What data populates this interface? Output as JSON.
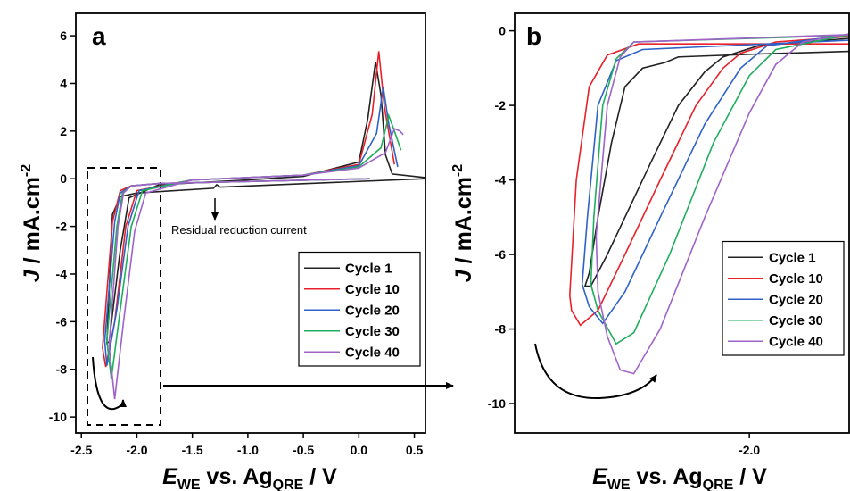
{
  "chart_data": [
    {
      "type": "line",
      "panel_label": "a",
      "ylabel": [
        "J",
        " / mA.cm",
        "-2"
      ],
      "xlabel": [
        "E",
        "WE",
        " vs. Ag",
        "QRE",
        " / V"
      ],
      "annotation": "Residual reduction current",
      "xlim": [
        -2.55,
        0.6
      ],
      "ylim": [
        -10.67,
        6.94
      ],
      "xticks": [
        -2.5,
        {
          "value": -2,
          "label": "-2.0"
        },
        -1.5,
        {
          "value": -1,
          "label": "-1.0"
        },
        -0.5,
        {
          "value": 0,
          "label": "0.0"
        },
        0.5
      ],
      "yticks": [
        -10,
        -8,
        -6,
        -4,
        -2,
        0,
        2,
        4,
        6
      ],
      "legend": "lower right",
      "series": [
        {
          "name": "Cycle 1",
          "color": "#222222",
          "x": [
            0.6,
            -1.25,
            -1.28,
            -1.31,
            -2.0,
            -2.15,
            -2.22,
            -2.27,
            -2.25,
            -2.15,
            -2.07,
            -1.8,
            -1.0,
            -0.5,
            0.0,
            0.08,
            0.15,
            0.2,
            0.24,
            0.3,
            0.6
          ],
          "values": [
            0.0,
            -0.35,
            -0.25,
            -0.4,
            -0.6,
            -0.75,
            -1.5,
            -6.9,
            -6.85,
            -3.0,
            -0.8,
            -0.25,
            -0.05,
            0.1,
            0.7,
            2.5,
            4.9,
            3.5,
            1.0,
            0.2,
            0.05
          ]
        },
        {
          "name": "Cycle 10",
          "color": "#e8212b",
          "x": [
            0.1,
            -1.8,
            -2.05,
            -2.15,
            -2.22,
            -2.31,
            -2.28,
            -2.2,
            -2.1,
            -2.0,
            -1.5,
            -0.5,
            0.0,
            0.12,
            0.18,
            0.23,
            0.32
          ],
          "values": [
            0.0,
            -0.2,
            -0.3,
            -0.5,
            -1.8,
            -7.1,
            -7.9,
            -6.0,
            -2.0,
            -0.5,
            -0.05,
            0.15,
            0.6,
            2.7,
            5.35,
            3.0,
            0.6
          ]
        },
        {
          "name": "Cycle 20",
          "color": "#2f62c8",
          "x": [
            0.1,
            -1.8,
            -2.05,
            -2.15,
            -2.2,
            -2.29,
            -2.27,
            -2.18,
            -2.08,
            -1.98,
            -1.5,
            -0.5,
            0.0,
            0.16,
            0.22,
            0.27,
            0.35
          ],
          "values": [
            0.0,
            -0.2,
            -0.3,
            -0.6,
            -1.8,
            -6.8,
            -7.85,
            -5.5,
            -2.0,
            -0.5,
            -0.05,
            0.15,
            0.55,
            1.9,
            3.85,
            2.3,
            0.5
          ]
        },
        {
          "name": "Cycle 30",
          "color": "#1fae5c",
          "x": [
            0.1,
            -1.8,
            -2.05,
            -2.13,
            -2.18,
            -2.27,
            -2.23,
            -2.15,
            -2.05,
            -1.95,
            -1.5,
            -0.5,
            0.0,
            0.2,
            0.27,
            0.32,
            0.38
          ],
          "values": [
            0.0,
            -0.2,
            -0.3,
            -0.6,
            -2.0,
            -6.8,
            -8.4,
            -5.5,
            -2.0,
            -0.5,
            -0.05,
            0.15,
            0.5,
            1.3,
            2.65,
            2.0,
            1.2
          ]
        },
        {
          "name": "Cycle 40",
          "color": "#a063c9",
          "x": [
            0.1,
            -1.8,
            -2.05,
            -2.12,
            -2.17,
            -2.25,
            -2.2,
            -2.12,
            -2.02,
            -1.92,
            -1.5,
            -0.5,
            0.0,
            0.24,
            0.32,
            0.37,
            0.4
          ],
          "values": [
            0.0,
            -0.2,
            -0.3,
            -0.6,
            -2.0,
            -7.0,
            -9.25,
            -6.0,
            -2.2,
            -0.6,
            -0.05,
            0.15,
            0.45,
            1.1,
            2.1,
            2.0,
            1.85
          ]
        }
      ]
    },
    {
      "type": "line",
      "panel_label": "b",
      "ylabel": [
        "J",
        " / mA.cm",
        "-2"
      ],
      "xlabel": [
        "E",
        "WE",
        " vs. Ag",
        "QRE",
        " / V"
      ],
      "xlim": [
        -2.4,
        -1.83
      ],
      "ylim": [
        -10.79,
        0.47
      ],
      "xticks": [
        {
          "value": -2,
          "label": "-2.0"
        }
      ],
      "yticks": [
        -10,
        -8,
        -6,
        -4,
        -2,
        0
      ],
      "legend": "lower right",
      "series": [
        {
          "name": "Cycle 1",
          "color": "#222222",
          "x": [
            -1.83,
            -1.985,
            -2.121,
            -2.144,
            -2.182,
            -2.212,
            -2.235,
            -2.258,
            -2.273,
            -2.28,
            -2.27,
            -2.242,
            -2.212,
            -2.167,
            -2.121,
            -2.076,
            -2.045,
            -1.985,
            -1.83
          ],
          "values": [
            -0.55,
            -0.62,
            -0.7,
            -0.85,
            -1.0,
            -1.5,
            -3.0,
            -5.0,
            -6.5,
            -6.85,
            -6.85,
            -6.0,
            -5.0,
            -3.5,
            -2.0,
            -1.1,
            -0.7,
            -0.4,
            -0.2
          ]
        },
        {
          "name": "Cycle 10",
          "color": "#e8212b",
          "x": [
            -1.83,
            -2.189,
            -2.242,
            -2.273,
            -2.295,
            -2.306,
            -2.303,
            -2.288,
            -2.258,
            -2.212,
            -2.152,
            -2.091,
            -2.045,
            -2.015,
            -1.955,
            -1.83
          ],
          "values": [
            -0.35,
            -0.35,
            -0.65,
            -1.5,
            -4.0,
            -7.1,
            -7.5,
            -7.9,
            -7.5,
            -6.0,
            -4.0,
            -2.0,
            -1.0,
            -0.6,
            -0.3,
            -0.15
          ]
        },
        {
          "name": "Cycle 20",
          "color": "#2f62c8",
          "x": [
            -1.83,
            -2.182,
            -2.227,
            -2.258,
            -2.276,
            -2.285,
            -2.273,
            -2.25,
            -2.212,
            -2.152,
            -2.076,
            -2.015,
            -1.97,
            -1.83
          ],
          "values": [
            -0.25,
            -0.5,
            -0.8,
            -2.0,
            -5.0,
            -6.8,
            -7.4,
            -7.85,
            -7.0,
            -5.0,
            -2.5,
            -1.0,
            -0.4,
            -0.1
          ]
        },
        {
          "name": "Cycle 30",
          "color": "#1fae5c",
          "x": [
            -1.83,
            -2.197,
            -2.227,
            -2.25,
            -2.265,
            -2.27,
            -2.258,
            -2.227,
            -2.197,
            -2.136,
            -2.061,
            -2.0,
            -1.955,
            -1.83
          ],
          "values": [
            -0.12,
            -0.3,
            -0.75,
            -2.0,
            -5.0,
            -6.8,
            -7.5,
            -8.4,
            -8.1,
            -6.0,
            -3.0,
            -1.2,
            -0.5,
            -0.1
          ]
        },
        {
          "name": "Cycle 40",
          "color": "#a063c9",
          "x": [
            -1.83,
            -2.197,
            -2.22,
            -2.242,
            -2.261,
            -2.258,
            -2.242,
            -2.22,
            -2.197,
            -2.152,
            -2.076,
            -2.0,
            -1.955,
            -1.909,
            -1.83
          ],
          "values": [
            -0.1,
            -0.3,
            -0.7,
            -2.0,
            -5.5,
            -7.0,
            -8.2,
            -9.1,
            -9.2,
            -8.0,
            -5.0,
            -2.2,
            -0.9,
            -0.3,
            -0.08
          ]
        }
      ]
    }
  ]
}
